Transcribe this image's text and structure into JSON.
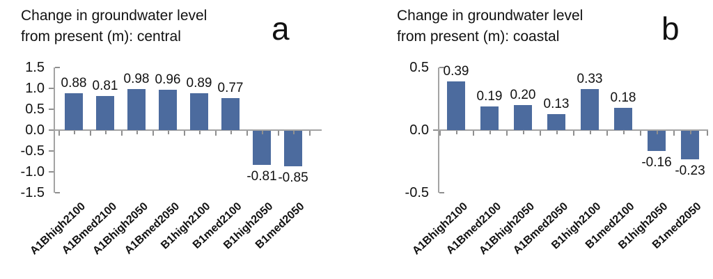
{
  "chart_data": [
    {
      "type": "bar",
      "panel_label": "a",
      "title": "Change in groundwater level from present (m): central",
      "title_lines": [
        "Change in groundwater level",
        "from present (m): central"
      ],
      "categories": [
        "A1Bhigh2100",
        "A1Bmed2100",
        "A1Bhigh2050",
        "A1Bmed2050",
        "B1high2100",
        "B1med2100",
        "B1high2050",
        "B1med2050"
      ],
      "values": [
        0.88,
        0.81,
        0.98,
        0.96,
        0.89,
        0.77,
        -0.81,
        -0.85
      ],
      "value_labels": [
        "0.88",
        "0.81",
        "0.98",
        "0.96",
        "0.89",
        "0.77",
        "-0.81",
        "-0.85"
      ],
      "ylim": [
        -1.5,
        1.5
      ],
      "yticks": [
        1.5,
        1.0,
        0.5,
        0.0,
        -0.5,
        -1.0,
        -1.5
      ],
      "ytick_labels": [
        "1.5",
        "1.0",
        "0.5",
        "0.0",
        "-0.5",
        "-1.0",
        "-1.5"
      ],
      "xlabel": "",
      "ylabel": "",
      "grid": false,
      "legend": null,
      "bar_color": "#4C6B9E",
      "axis_color": "#a3a3a3"
    },
    {
      "type": "bar",
      "panel_label": "b",
      "title": "Change in groundwater level from present (m): coastal",
      "title_lines": [
        "Change in groundwater level",
        "from present (m): coastal"
      ],
      "categories": [
        "A1Bhigh2100",
        "A1Bmed2100",
        "A1Bhigh2050",
        "A1Bmed2050",
        "B1high2100",
        "B1med2100",
        "B1high2050",
        "B1med2050"
      ],
      "values": [
        0.39,
        0.19,
        0.2,
        0.13,
        0.33,
        0.18,
        -0.16,
        -0.23
      ],
      "value_labels": [
        "0.39",
        "0.19",
        "0.20",
        "0.13",
        "0.33",
        "0.18",
        "-0.16",
        "-0.23"
      ],
      "ylim": [
        -0.5,
        0.5
      ],
      "yticks": [
        0.5,
        0.0,
        -0.5
      ],
      "ytick_labels": [
        "0.5",
        "0.0",
        "-0.5"
      ],
      "xlabel": "",
      "ylabel": "",
      "grid": false,
      "legend": null,
      "bar_color": "#4C6B9E",
      "axis_color": "#a3a3a3"
    }
  ]
}
